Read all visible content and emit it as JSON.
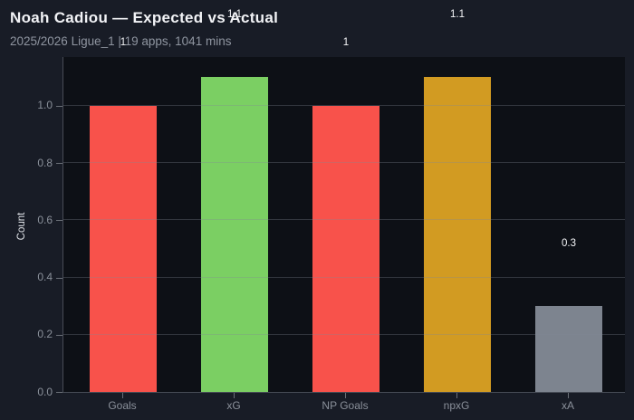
{
  "header": {
    "title": "Noah Cadiou — Expected vs Actual",
    "subtitle": "2025/2026 Ligue_1 | 19 apps, 1041 mins"
  },
  "chart_data": {
    "type": "bar",
    "title": "Noah Cadiou — Expected vs Actual",
    "subtitle": "2025/2026 Ligue_1 | 19 apps, 1041 mins",
    "categories": [
      "Goals",
      "xG",
      "NP Goals",
      "npxG",
      "xA"
    ],
    "values": [
      1.0,
      1.1,
      1.0,
      1.1,
      0.3
    ],
    "value_labels": [
      "1",
      "1.1",
      "1",
      "1.1",
      "0.3"
    ],
    "bar_colors": [
      "#f8524b",
      "#7bcf63",
      "#f8524b",
      "#d29b22",
      "#7d848f"
    ],
    "xlabel": "",
    "ylabel": "Count",
    "yticks": [
      0.0,
      0.2,
      0.4,
      0.6,
      0.8,
      1.0
    ],
    "ytick_labels": [
      "0.0",
      "0.2",
      "0.4",
      "0.6",
      "0.8",
      "1.0"
    ],
    "ylim": [
      0,
      1.17
    ],
    "grid": true,
    "legend": false
  },
  "colors": {
    "figure_bg": "#181c26",
    "plot_bg": "#0d1016",
    "spine": "#474c56",
    "grid": "rgba(130,137,150,0.32)",
    "title_text": "#f2f3f6",
    "subtitle_text": "#8f95a0",
    "tick_text": "#8a909a",
    "axis_label_text": "#e0e3e8",
    "value_label_text": "#f5f6f8"
  }
}
